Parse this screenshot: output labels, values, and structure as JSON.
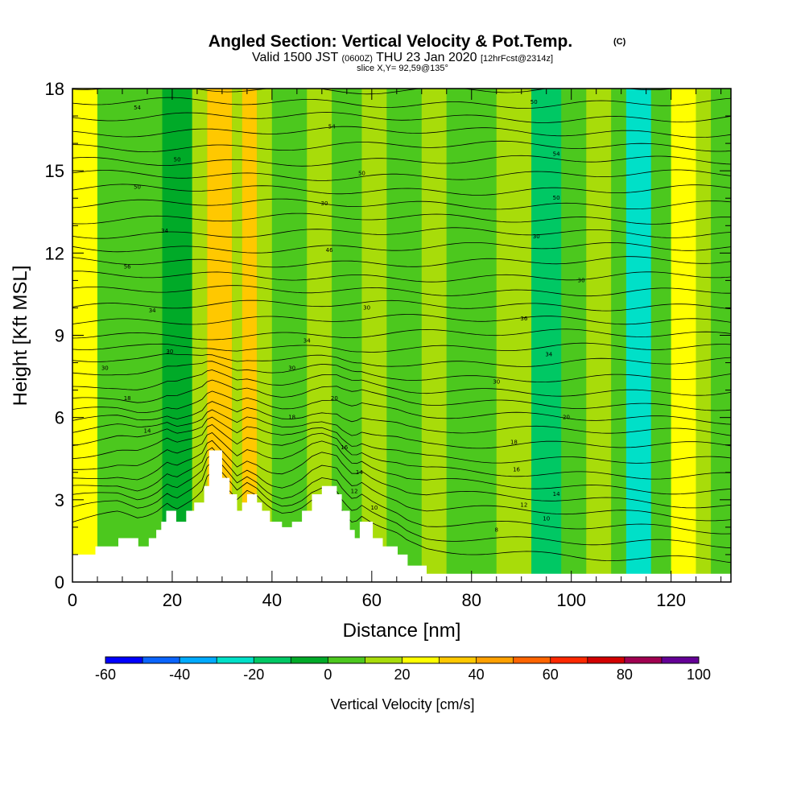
{
  "figure": {
    "title": "Angled Section: Vertical Velocity & Pot.Temp.",
    "title_units": "(C)",
    "valid_prefix": "Valid 1500 JST",
    "valid_utc": "(0600Z)",
    "valid_date": "THU 23 Jan 2020",
    "forecast_info": "[12hrFcst@2314z]",
    "slice_info": "slice X,Y= 92,59@135°"
  },
  "colorbar": {
    "label": "Vertical Velocity [cm/s]",
    "tick_labels": [
      "-60",
      "-40",
      "-20",
      "0",
      "20",
      "40",
      "60",
      "80",
      "100"
    ],
    "colors": [
      "#0000ff",
      "#0a64ff",
      "#00aaff",
      "#00e0c8",
      "#00c864",
      "#00aa28",
      "#4cc81e",
      "#a8dc0a",
      "#ffff00",
      "#ffc800",
      "#ffa000",
      "#ff6400",
      "#ff2800",
      "#d20000",
      "#a00050",
      "#640096"
    ]
  },
  "chart_data": {
    "type": "heatmap",
    "title": "Angled Section: Vertical Velocity & Pot.Temp.",
    "xlabel": "Distance [nm]",
    "ylabel": "Height [Kft MSL]",
    "xlim": [
      0,
      132
    ],
    "ylim": [
      0,
      18
    ],
    "x_ticks": [
      0,
      20,
      40,
      60,
      80,
      100,
      120
    ],
    "x_tick_labels": [
      "0",
      "20",
      "40",
      "60",
      "80",
      "100",
      "120"
    ],
    "y_ticks": [
      0,
      3,
      6,
      9,
      12,
      15,
      18
    ],
    "y_tick_labels": [
      "0",
      "3",
      "6",
      "9",
      "12",
      "15",
      "18"
    ],
    "fill_variable": "Vertical Velocity [cm/s]",
    "fill_levels": [
      -60,
      -50,
      -40,
      -30,
      -20,
      -10,
      0,
      10,
      20,
      30,
      40,
      50,
      60,
      70,
      80,
      90,
      100
    ],
    "velocity_columns": [
      {
        "x0": 0,
        "x1": 5,
        "value": 25
      },
      {
        "x0": 5,
        "x1": 12,
        "value": 5
      },
      {
        "x0": 12,
        "x1": 18,
        "value": 8
      },
      {
        "x0": 18,
        "x1": 24,
        "value": -5
      },
      {
        "x0": 24,
        "x1": 27,
        "value": 15
      },
      {
        "x0": 27,
        "x1": 32,
        "value": 35
      },
      {
        "x0": 32,
        "x1": 34,
        "value": 15
      },
      {
        "x0": 34,
        "x1": 37,
        "value": 35
      },
      {
        "x0": 37,
        "x1": 40,
        "value": 15
      },
      {
        "x0": 40,
        "x1": 47,
        "value": 5
      },
      {
        "x0": 47,
        "x1": 52,
        "value": 15
      },
      {
        "x0": 52,
        "x1": 58,
        "value": 5
      },
      {
        "x0": 58,
        "x1": 63,
        "value": 15
      },
      {
        "x0": 63,
        "x1": 70,
        "value": 5
      },
      {
        "x0": 70,
        "x1": 75,
        "value": 15
      },
      {
        "x0": 75,
        "x1": 85,
        "value": 5
      },
      {
        "x0": 85,
        "x1": 92,
        "value": 15
      },
      {
        "x0": 92,
        "x1": 98,
        "value": -15
      },
      {
        "x0": 98,
        "x1": 103,
        "value": 5
      },
      {
        "x0": 103,
        "x1": 108,
        "value": 15
      },
      {
        "x0": 108,
        "x1": 111,
        "value": 5
      },
      {
        "x0": 111,
        "x1": 116,
        "value": -25
      },
      {
        "x0": 116,
        "x1": 120,
        "value": 5
      },
      {
        "x0": 120,
        "x1": 125,
        "value": 25
      },
      {
        "x0": 125,
        "x1": 128,
        "value": 15
      },
      {
        "x0": 128,
        "x1": 132,
        "value": 5
      }
    ],
    "terrain": [
      {
        "x": 0,
        "h": 1.0
      },
      {
        "x": 4.6,
        "h": 1.3
      },
      {
        "x": 9.2,
        "h": 1.6
      },
      {
        "x": 13.2,
        "h": 1.3
      },
      {
        "x": 15.3,
        "h": 1.6
      },
      {
        "x": 16.8,
        "h": 1.9
      },
      {
        "x": 17.8,
        "h": 2.2
      },
      {
        "x": 18.8,
        "h": 2.6
      },
      {
        "x": 20.8,
        "h": 2.2
      },
      {
        "x": 22.8,
        "h": 2.6
      },
      {
        "x": 24.4,
        "h": 2.9
      },
      {
        "x": 26.4,
        "h": 3.5
      },
      {
        "x": 27.4,
        "h": 4.8
      },
      {
        "x": 30.0,
        "h": 3.8
      },
      {
        "x": 31.5,
        "h": 3.2
      },
      {
        "x": 33.0,
        "h": 2.6
      },
      {
        "x": 34.0,
        "h": 2.9
      },
      {
        "x": 35.0,
        "h": 3.2
      },
      {
        "x": 37.0,
        "h": 2.9
      },
      {
        "x": 38.0,
        "h": 2.6
      },
      {
        "x": 39.6,
        "h": 2.2
      },
      {
        "x": 42.0,
        "h": 2.0
      },
      {
        "x": 44.0,
        "h": 2.2
      },
      {
        "x": 46.0,
        "h": 2.6
      },
      {
        "x": 48.0,
        "h": 3.2
      },
      {
        "x": 50.0,
        "h": 3.5
      },
      {
        "x": 53.0,
        "h": 3.2
      },
      {
        "x": 54.0,
        "h": 2.6
      },
      {
        "x": 55.6,
        "h": 1.9
      },
      {
        "x": 56.6,
        "h": 1.6
      },
      {
        "x": 57.6,
        "h": 2.2
      },
      {
        "x": 60.2,
        "h": 1.6
      },
      {
        "x": 62.2,
        "h": 1.3
      },
      {
        "x": 65.2,
        "h": 1.0
      },
      {
        "x": 67.2,
        "h": 0.6
      },
      {
        "x": 71.0,
        "h": 0.3
      },
      {
        "x": 132,
        "h": 0.3
      }
    ],
    "isentrope_count": 34,
    "contour_labels": [
      {
        "x": 13,
        "y": 17.3,
        "text": "54"
      },
      {
        "x": 21,
        "y": 15.4,
        "text": "50"
      },
      {
        "x": 13,
        "y": 14.4,
        "text": "50"
      },
      {
        "x": 18.5,
        "y": 12.8,
        "text": "34"
      },
      {
        "x": 11,
        "y": 11.5,
        "text": "56"
      },
      {
        "x": 16,
        "y": 9.9,
        "text": "34"
      },
      {
        "x": 19.5,
        "y": 8.4,
        "text": "30"
      },
      {
        "x": 6.5,
        "y": 7.8,
        "text": "30"
      },
      {
        "x": 11,
        "y": 6.7,
        "text": "18"
      },
      {
        "x": 15,
        "y": 5.5,
        "text": "14"
      },
      {
        "x": 52,
        "y": 16.6,
        "text": "54"
      },
      {
        "x": 58,
        "y": 14.9,
        "text": "50"
      },
      {
        "x": 50.5,
        "y": 13.8,
        "text": "30"
      },
      {
        "x": 51.5,
        "y": 12.1,
        "text": "46"
      },
      {
        "x": 59,
        "y": 10.0,
        "text": "30"
      },
      {
        "x": 47,
        "y": 8.8,
        "text": "34"
      },
      {
        "x": 44,
        "y": 7.8,
        "text": "30"
      },
      {
        "x": 52.5,
        "y": 6.7,
        "text": "20"
      },
      {
        "x": 44,
        "y": 6.0,
        "text": "18"
      },
      {
        "x": 54.5,
        "y": 4.9,
        "text": "16"
      },
      {
        "x": 57.5,
        "y": 4.0,
        "text": "14"
      },
      {
        "x": 56.5,
        "y": 3.3,
        "text": "12"
      },
      {
        "x": 60.5,
        "y": 2.7,
        "text": "10"
      },
      {
        "x": 92.5,
        "y": 17.5,
        "text": "50"
      },
      {
        "x": 97,
        "y": 15.6,
        "text": "54"
      },
      {
        "x": 97,
        "y": 14.0,
        "text": "50"
      },
      {
        "x": 93,
        "y": 12.6,
        "text": "30"
      },
      {
        "x": 102,
        "y": 11.0,
        "text": "30"
      },
      {
        "x": 90.5,
        "y": 9.6,
        "text": "36"
      },
      {
        "x": 95.5,
        "y": 8.3,
        "text": "34"
      },
      {
        "x": 85,
        "y": 7.3,
        "text": "30"
      },
      {
        "x": 99,
        "y": 6.0,
        "text": "20"
      },
      {
        "x": 88.5,
        "y": 5.1,
        "text": "18"
      },
      {
        "x": 89,
        "y": 4.1,
        "text": "16"
      },
      {
        "x": 97,
        "y": 3.2,
        "text": "14"
      },
      {
        "x": 90.5,
        "y": 2.8,
        "text": "12"
      },
      {
        "x": 95,
        "y": 2.3,
        "text": "10"
      },
      {
        "x": 85,
        "y": 1.9,
        "text": "8"
      }
    ]
  }
}
